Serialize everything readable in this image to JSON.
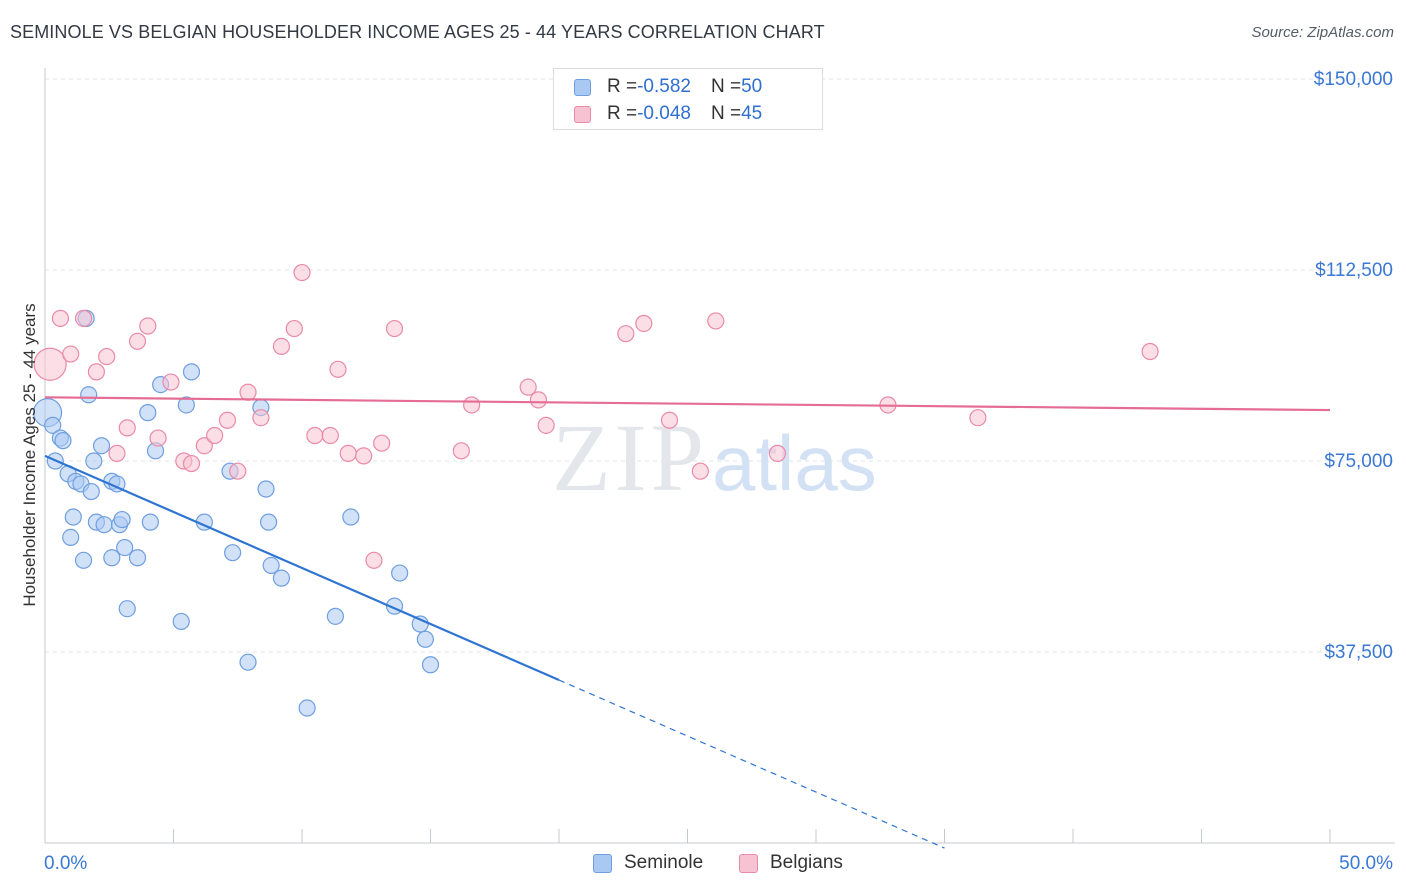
{
  "title": "SEMINOLE VS BELGIAN HOUSEHOLDER INCOME AGES 25 - 44 YEARS CORRELATION CHART",
  "source": "Source: ZipAtlas.com",
  "watermark": {
    "zip": "ZIP",
    "atlas": "atlas"
  },
  "legend": {
    "rows": [
      {
        "r_label": "R = ",
        "r_value": "-0.582",
        "n_label": "N = ",
        "n_value": "50",
        "color": "#a9c8f2",
        "border": "#6f9fe0"
      },
      {
        "r_label": "R = ",
        "r_value": "-0.048",
        "n_label": "N = ",
        "n_value": "45",
        "color": "#f7c3d2",
        "border": "#e98aa8"
      }
    ]
  },
  "bottom_legend": [
    {
      "label": "Seminole",
      "color": "#a9c8f2",
      "border": "#6f9fe0"
    },
    {
      "label": "Belgians",
      "color": "#f7c3d2",
      "border": "#e98aa8"
    }
  ],
  "chart_data": {
    "type": "scatter",
    "title": "SEMINOLE VS BELGIAN HOUSEHOLDER INCOME AGES 25 - 44 YEARS CORRELATION CHART",
    "xlabel": "",
    "ylabel": "Householder Income Ages 25 - 44 years",
    "xlim": [
      0,
      50
    ],
    "ylim": [
      0,
      155000
    ],
    "x_tick_labels": [
      "0.0%",
      "50.0%"
    ],
    "y_ticks": [
      {
        "value": 37500,
        "label": "$37,500"
      },
      {
        "value": 75000,
        "label": "$75,000"
      },
      {
        "value": 112500,
        "label": "$112,500"
      },
      {
        "value": 150000,
        "label": "$150,000"
      }
    ],
    "series": [
      {
        "name": "Seminole",
        "color": "#a9c8f2",
        "stroke": "#6f9fe0",
        "trend": {
          "x0": 0,
          "y0": 76000,
          "x1": 20,
          "y1": 32000,
          "dash_to_x": 35,
          "color": "#2e74d2"
        },
        "points": [
          [
            0.1,
            84500,
            14
          ],
          [
            0.3,
            82000,
            8
          ],
          [
            0.4,
            75000,
            8
          ],
          [
            0.6,
            79500,
            8
          ],
          [
            0.7,
            79000,
            8
          ],
          [
            0.9,
            72500,
            8
          ],
          [
            1.0,
            60000,
            8
          ],
          [
            1.1,
            64000,
            8
          ],
          [
            1.2,
            71000,
            8
          ],
          [
            1.4,
            70500,
            8
          ],
          [
            1.5,
            55500,
            8
          ],
          [
            1.6,
            103000,
            8
          ],
          [
            1.7,
            88000,
            8
          ],
          [
            1.8,
            69000,
            8
          ],
          [
            1.9,
            75000,
            8
          ],
          [
            2.0,
            63000,
            8
          ],
          [
            2.2,
            78000,
            8
          ],
          [
            2.3,
            62500,
            8
          ],
          [
            2.6,
            71000,
            8
          ],
          [
            2.6,
            56000,
            8
          ],
          [
            2.8,
            70500,
            8
          ],
          [
            2.9,
            62500,
            8
          ],
          [
            3.0,
            63500,
            8
          ],
          [
            3.1,
            58000,
            8
          ],
          [
            3.2,
            46000,
            8
          ],
          [
            3.6,
            56000,
            8
          ],
          [
            4.0,
            84500,
            8
          ],
          [
            4.1,
            63000,
            8
          ],
          [
            4.3,
            77000,
            8
          ],
          [
            4.5,
            90000,
            8
          ],
          [
            5.3,
            43500,
            8
          ],
          [
            5.5,
            86000,
            8
          ],
          [
            5.7,
            92500,
            8
          ],
          [
            6.2,
            63000,
            8
          ],
          [
            7.2,
            73000,
            8
          ],
          [
            7.3,
            57000,
            8
          ],
          [
            7.9,
            35500,
            8
          ],
          [
            8.4,
            85500,
            8
          ],
          [
            8.6,
            69500,
            8
          ],
          [
            8.8,
            54500,
            8
          ],
          [
            8.7,
            63000,
            8
          ],
          [
            9.2,
            52000,
            8
          ],
          [
            10.2,
            26500,
            8
          ],
          [
            11.3,
            44500,
            8
          ],
          [
            11.9,
            64000,
            8
          ],
          [
            13.6,
            46500,
            8
          ],
          [
            13.8,
            53000,
            8
          ],
          [
            14.6,
            43000,
            8
          ],
          [
            14.8,
            40000,
            8
          ],
          [
            15.0,
            35000,
            8
          ]
        ]
      },
      {
        "name": "Belgians",
        "color": "#f7c3d2",
        "stroke": "#e98aa8",
        "trend": {
          "x0": 0,
          "y0": 87500,
          "x1": 50,
          "y1": 85000,
          "color": "#e46c95"
        },
        "points": [
          [
            0.2,
            94000,
            16
          ],
          [
            0.6,
            103000,
            8
          ],
          [
            1.0,
            96000,
            8
          ],
          [
            1.5,
            103000,
            8
          ],
          [
            2.0,
            92500,
            8
          ],
          [
            2.4,
            95500,
            8
          ],
          [
            2.8,
            76500,
            8
          ],
          [
            3.2,
            81500,
            8
          ],
          [
            3.6,
            98500,
            8
          ],
          [
            4.0,
            101500,
            8
          ],
          [
            4.4,
            79500,
            8
          ],
          [
            4.9,
            90500,
            8
          ],
          [
            5.4,
            75000,
            8
          ],
          [
            5.7,
            74500,
            8
          ],
          [
            6.2,
            78000,
            8
          ],
          [
            6.6,
            80000,
            8
          ],
          [
            7.1,
            83000,
            8
          ],
          [
            7.5,
            73000,
            8
          ],
          [
            7.9,
            88500,
            8
          ],
          [
            8.4,
            83500,
            8
          ],
          [
            9.2,
            97500,
            8
          ],
          [
            9.7,
            101000,
            8
          ],
          [
            10.0,
            112000,
            8
          ],
          [
            10.5,
            80000,
            8
          ],
          [
            11.1,
            80000,
            8
          ],
          [
            11.4,
            93000,
            8
          ],
          [
            11.8,
            76500,
            8
          ],
          [
            12.4,
            76000,
            8
          ],
          [
            12.8,
            55500,
            8
          ],
          [
            13.1,
            78500,
            8
          ],
          [
            13.6,
            101000,
            8
          ],
          [
            16.2,
            77000,
            8
          ],
          [
            16.6,
            86000,
            8
          ],
          [
            18.8,
            89500,
            8
          ],
          [
            19.2,
            87000,
            8
          ],
          [
            19.5,
            82000,
            8
          ],
          [
            22.6,
            100000,
            8
          ],
          [
            23.3,
            102000,
            8
          ],
          [
            24.3,
            83000,
            8
          ],
          [
            25.5,
            73000,
            8
          ],
          [
            26.1,
            102500,
            8
          ],
          [
            28.5,
            76500,
            8
          ],
          [
            32.8,
            86000,
            8
          ],
          [
            36.3,
            83500,
            8
          ],
          [
            43.0,
            96500,
            8
          ]
        ]
      }
    ]
  }
}
